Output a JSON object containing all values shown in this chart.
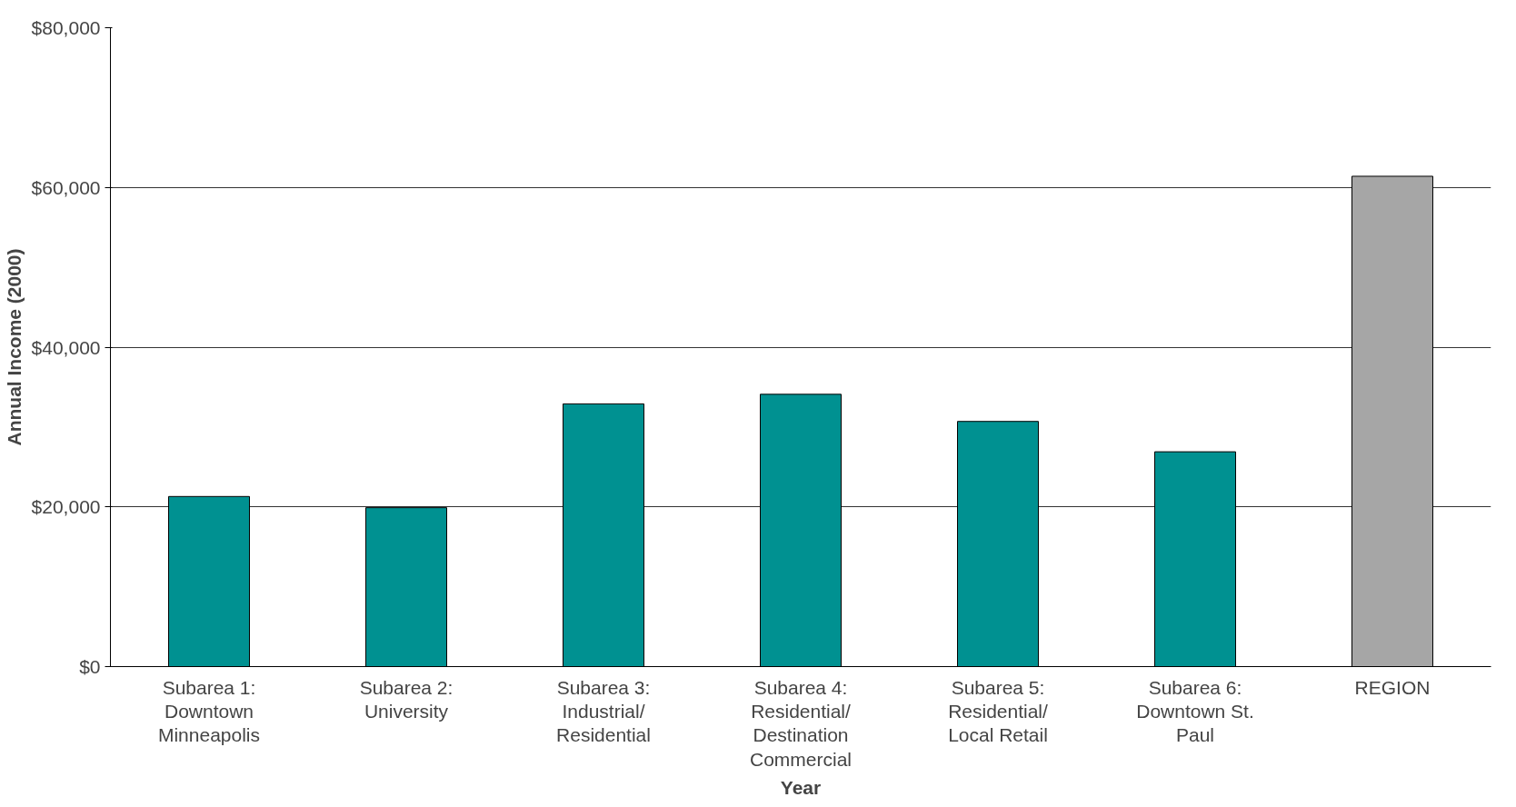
{
  "chart_data": {
    "type": "bar",
    "xlabel": "Year",
    "ylabel": "Annual Income (2000)",
    "categories": [
      "Subarea 1: Downtown Minneapolis",
      "Subarea 2: University",
      "Subarea 3: Industrial/ Residential",
      "Subarea 4: Residential/ Destination Commercial",
      "Subarea 5: Residential/ Local Retail",
      "Subarea 6: Downtown St. Paul",
      "REGION"
    ],
    "values": [
      21300,
      19900,
      32900,
      34100,
      30700,
      26900,
      61400
    ],
    "colors": [
      "#009191",
      "#009191",
      "#009191",
      "#009191",
      "#009191",
      "#009191",
      "#a6a6a6"
    ],
    "ylim": [
      0,
      80000
    ],
    "yticks": [
      {
        "value": 0,
        "label": "$0"
      },
      {
        "value": 20000,
        "label": "$20,000"
      },
      {
        "value": 40000,
        "label": "$40,000"
      },
      {
        "value": 60000,
        "label": "$60,000"
      },
      {
        "value": 80000,
        "label": "$80,000"
      }
    ],
    "grid": "y"
  }
}
